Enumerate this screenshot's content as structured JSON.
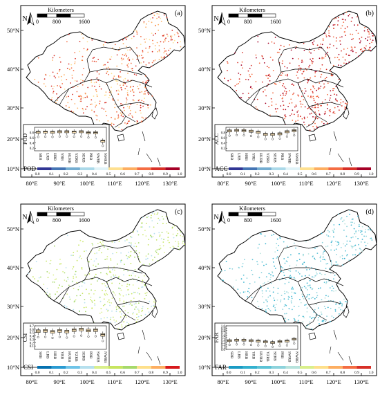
{
  "scalebar": {
    "title": "Kilometers",
    "ticks": [
      "0",
      "800",
      "1600"
    ]
  },
  "north": "N",
  "axes": {
    "lat": [
      "50°N",
      "40°N",
      "30°N",
      "20°N",
      "10°N"
    ],
    "lon": [
      "80°E",
      "90°E",
      "100°E",
      "110°E",
      "120°E",
      "130°E"
    ]
  },
  "regions": [
    "SRB",
    "LRB",
    "HRB",
    "YRB",
    "HURB",
    "YZRB",
    "SERB",
    "PRB",
    "SWRB",
    "NWRB"
  ],
  "panels": [
    {
      "id": "pod",
      "letter": "(a)",
      "metric": "POD",
      "ylim": [
        0.1,
        1.0
      ],
      "yticks": [
        "0.8",
        "0.6",
        "0.4",
        "0.2"
      ],
      "legend_ticks": [
        "0.0",
        "0.1",
        "0.2",
        "0.3",
        "0.4",
        "0.5",
        "0.6",
        "0.7",
        "0.8",
        "0.9",
        "1.0"
      ],
      "colors": [
        "#313695",
        "#4575b4",
        "#74add1",
        "#abd9e9",
        "#e0f3f8",
        "#fee090",
        "#fdae61",
        "#f46d43",
        "#d73027",
        "#a50026"
      ],
      "point_value_range": [
        0.55,
        0.9
      ],
      "box_medians": [
        0.82,
        0.83,
        0.82,
        0.84,
        0.84,
        0.83,
        0.84,
        0.8,
        0.8,
        0.48
      ]
    },
    {
      "id": "acc",
      "letter": "(b)",
      "metric": "ACC",
      "ylim": [
        0.1,
        1.0
      ],
      "yticks": [
        "0.8",
        "0.6",
        "0.4",
        "0.2"
      ],
      "legend_ticks": [
        "0.0",
        "0.1",
        "0.2",
        "0.3",
        "0.4",
        "0.5",
        "0.6",
        "0.7",
        "0.8",
        "0.9",
        "1.0"
      ],
      "colors": [
        "#313695",
        "#4575b4",
        "#74add1",
        "#abd9e9",
        "#e0f3f8",
        "#fee090",
        "#fdae61",
        "#f46d43",
        "#d73027",
        "#a50026"
      ],
      "point_value_range": [
        0.7,
        0.98
      ],
      "box_medians": [
        0.87,
        0.89,
        0.88,
        0.86,
        0.82,
        0.74,
        0.74,
        0.76,
        0.84,
        0.88
      ]
    },
    {
      "id": "csi",
      "letter": "(c)",
      "metric": "CSI",
      "ylim": [
        0.0,
        0.7
      ],
      "yticks": [
        "0.7",
        "0.6",
        "0.5",
        "0.4",
        "0.3",
        "0.2",
        "0.1"
      ],
      "legend_ticks": [
        "0.0",
        "0.1",
        "0.2",
        "0.3",
        "0.4",
        "0.5",
        "0.6",
        "0.7",
        "0.8",
        "0.9",
        "1.0"
      ],
      "colors": [
        "#0571b0",
        "#2a9bd2",
        "#6fc4e8",
        "#b6e0ee",
        "#d9ef8b",
        "#c7e55f",
        "#a6d96a",
        "#fee08b",
        "#fdae61",
        "#d7191c"
      ],
      "point_value_range": [
        0.3,
        0.7
      ],
      "box_medians": [
        0.55,
        0.56,
        0.53,
        0.56,
        0.54,
        0.58,
        0.6,
        0.57,
        0.58,
        0.44
      ]
    },
    {
      "id": "far",
      "letter": "(d)",
      "metric": "FAR",
      "ylim": [
        0.0,
        1.0
      ],
      "yticks": [
        "1.0",
        "0.9",
        "0.8",
        "0.7",
        "0.6",
        "0.5",
        "0.4",
        "0.3",
        "0.2",
        "0.1",
        "0.0"
      ],
      "legend_ticks": [
        "0.0",
        "0.1",
        "0.2",
        "0.3",
        "0.4",
        "0.5",
        "0.6",
        "0.7",
        "0.8",
        "0.9",
        "1.0"
      ],
      "colors": [
        "#1a9bc4",
        "#33b1cf",
        "#5cc3d6",
        "#8dd3dc",
        "#b7e3dc",
        "#d9ef8b",
        "#fee08b",
        "#fdae61",
        "#f46d43",
        "#d73027"
      ],
      "point_value_range": [
        0.1,
        0.45
      ],
      "box_medians": [
        0.38,
        0.4,
        0.4,
        0.38,
        0.36,
        0.33,
        0.3,
        0.34,
        0.36,
        0.44
      ]
    }
  ]
}
